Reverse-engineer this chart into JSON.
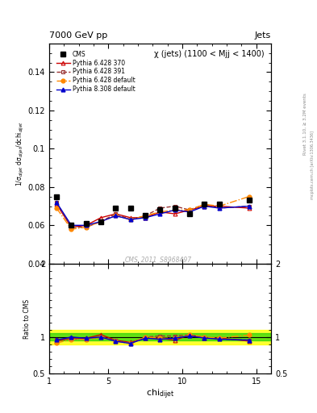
{
  "title_top": "7000 GeV pp",
  "title_right": "Jets",
  "plot_title": "χ (jets) (1100 < Mjj < 1400)",
  "watermark": "CMS_2011_S8968497",
  "rivet_label": "Rivet 3.1.10, ≥ 3.2M events",
  "arxiv_label": "mcplots.cern.ch [arXiv:1306.3436]",
  "xlabel": "chi",
  "xlabel_sub": "dijet",
  "ylabel": "1/σ$_{dijet}$ dσ$_{dijet}$/dchi$_{dijet}$",
  "ratio_ylabel": "Ratio to CMS",
  "ylim": [
    0.04,
    0.155
  ],
  "xlim": [
    1,
    16
  ],
  "ratio_ylim": [
    0.5,
    2.0
  ],
  "cms_x": [
    1.5,
    2.5,
    3.5,
    4.5,
    5.5,
    6.5,
    7.5,
    8.5,
    9.5,
    10.5,
    11.5,
    12.5,
    14.5
  ],
  "cms_y": [
    0.075,
    0.06,
    0.061,
    0.062,
    0.069,
    0.069,
    0.065,
    0.068,
    0.069,
    0.066,
    0.071,
    0.071,
    0.073
  ],
  "p6_370_x": [
    1.5,
    2.5,
    3.5,
    4.5,
    5.5,
    6.5,
    7.5,
    8.5,
    9.5,
    10.5,
    11.5,
    12.5,
    14.5
  ],
  "p6_370_y": [
    0.071,
    0.059,
    0.06,
    0.064,
    0.066,
    0.064,
    0.064,
    0.067,
    0.066,
    0.068,
    0.07,
    0.07,
    0.069
  ],
  "p6_391_x": [
    1.5,
    2.5,
    3.5,
    4.5,
    5.5,
    6.5,
    7.5,
    8.5,
    9.5,
    10.5,
    11.5,
    12.5,
    14.5
  ],
  "p6_391_y": [
    0.072,
    0.059,
    0.059,
    0.062,
    0.066,
    0.063,
    0.065,
    0.069,
    0.07,
    0.068,
    0.071,
    0.069,
    0.07
  ],
  "p6_def_x": [
    1.5,
    2.5,
    3.5,
    4.5,
    5.5,
    6.5,
    7.5,
    8.5,
    9.5,
    10.5,
    11.5,
    12.5,
    14.5
  ],
  "p6_def_y": [
    0.069,
    0.058,
    0.059,
    0.062,
    0.065,
    0.063,
    0.065,
    0.067,
    0.068,
    0.068,
    0.071,
    0.07,
    0.075
  ],
  "p8_def_x": [
    1.5,
    2.5,
    3.5,
    4.5,
    5.5,
    6.5,
    7.5,
    8.5,
    9.5,
    10.5,
    11.5,
    12.5,
    14.5
  ],
  "p8_def_y": [
    0.072,
    0.06,
    0.06,
    0.062,
    0.065,
    0.063,
    0.064,
    0.066,
    0.068,
    0.067,
    0.07,
    0.069,
    0.07
  ],
  "cms_color": "#000000",
  "p6_370_color": "#cc0000",
  "p6_391_color": "#993333",
  "p6_def_color": "#ff8800",
  "p8_def_color": "#0000cc",
  "green_band": 0.05,
  "yellow_band": 0.1,
  "legend_entries": [
    "CMS",
    "Pythia 6.428 370",
    "Pythia 6.428 391",
    "Pythia 6.428 default",
    "Pythia 8.308 default"
  ],
  "yticks_main": [
    0.04,
    0.06,
    0.08,
    0.1,
    0.12,
    0.14
  ],
  "ytick_labels_main": [
    "0.04",
    "0.06",
    "0.08",
    "0.1",
    "0.12",
    "0.14"
  ],
  "xticks": [
    1,
    5,
    10,
    15
  ],
  "ratio_yticks": [
    0.5,
    1.0,
    2.0
  ],
  "ratio_ytick_labels": [
    "0.5",
    "1",
    "2"
  ]
}
